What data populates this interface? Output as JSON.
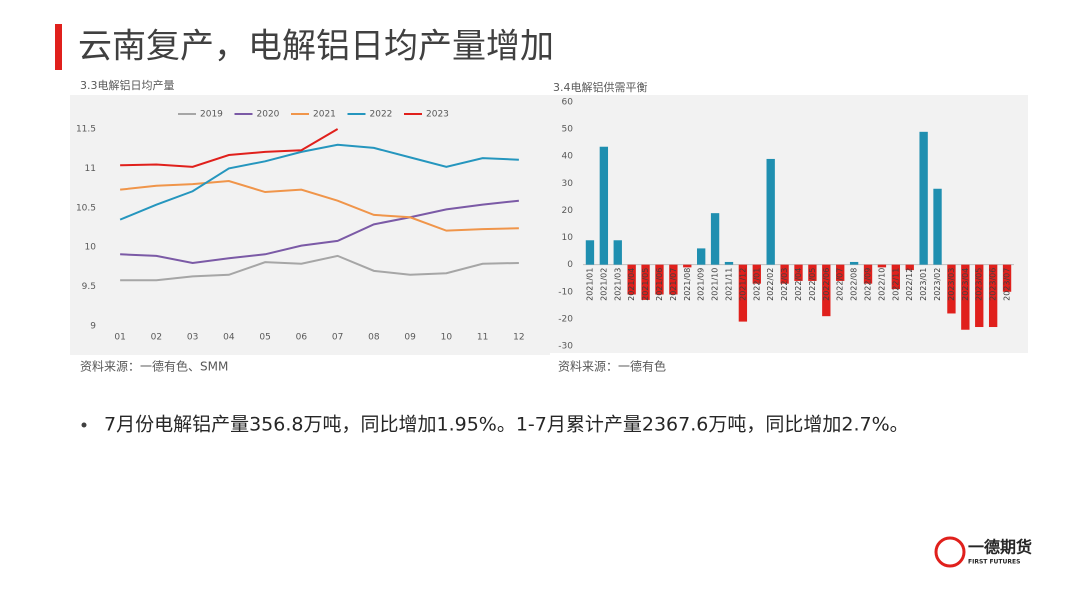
{
  "header": {
    "title": "云南复产，电解铝日均产量增加"
  },
  "chart_data": [
    {
      "type": "line",
      "title": "3.3电解铝日均产量",
      "source": "资料来源：一德有色、SMM",
      "categories": [
        "01",
        "02",
        "03",
        "04",
        "05",
        "06",
        "07",
        "08",
        "09",
        "10",
        "11",
        "12"
      ],
      "ylim": [
        9,
        11.5
      ],
      "yticks": [
        9,
        9.5,
        10,
        10.5,
        11,
        11.5
      ],
      "grid": false,
      "legend": "top",
      "series": [
        {
          "name": "2019",
          "color": "#a6a6a6",
          "values": [
            9.58,
            9.58,
            9.63,
            9.65,
            9.81,
            9.79,
            9.89,
            9.7,
            9.65,
            9.67,
            9.79,
            9.8
          ]
        },
        {
          "name": "2020",
          "color": "#7b5aa6",
          "values": [
            9.91,
            9.89,
            9.8,
            9.86,
            9.91,
            10.02,
            10.08,
            10.29,
            10.38,
            10.48,
            10.54,
            10.59
          ]
        },
        {
          "name": "2021",
          "color": "#f0954a",
          "values": [
            10.73,
            10.78,
            10.8,
            10.84,
            10.7,
            10.73,
            10.59,
            10.41,
            10.38,
            10.21,
            10.23,
            10.24
          ]
        },
        {
          "name": "2022",
          "color": "#2596be",
          "values": [
            10.35,
            10.54,
            10.71,
            11.0,
            11.09,
            11.21,
            11.3,
            11.26,
            11.14,
            11.02,
            11.13,
            11.11
          ]
        },
        {
          "name": "2023",
          "color": "#e0201c",
          "values": [
            11.04,
            11.05,
            11.02,
            11.17,
            11.21,
            11.23,
            11.5,
            null,
            null,
            null,
            null,
            null
          ]
        }
      ]
    },
    {
      "type": "bar",
      "title": "3.4电解铝供需平衡",
      "source": "资料来源：一德有色",
      "categories": [
        "2021/01",
        "2021/02",
        "2021/03",
        "2021/04",
        "2021/05",
        "2021/06",
        "2021/07",
        "2021/08",
        "2021/09",
        "2021/10",
        "2021/11",
        "2021/12",
        "2022/01",
        "2022/02",
        "2022/03",
        "2022/04",
        "2022/05",
        "2022/06",
        "2022/07",
        "2022/08",
        "2022/09",
        "2022/10",
        "2022/11",
        "2022/12",
        "2023/01",
        "2023/02",
        "2023/03",
        "2023/04",
        "2023/05",
        "2023/06",
        "2023/07"
      ],
      "values": [
        9,
        43.5,
        9,
        -11,
        -13,
        -11,
        -11,
        -1,
        6,
        19,
        1,
        -21,
        -7,
        39,
        -7,
        -6,
        -6,
        -19,
        -6,
        1,
        -7,
        -1,
        -9,
        -2,
        49,
        28,
        -18,
        -24,
        -23,
        -23,
        -10
      ],
      "color": "#1f8fb0",
      "negative_color": "#e0201c",
      "ylim": [
        -30,
        60
      ],
      "yticks": [
        -30,
        -20,
        -10,
        0,
        10,
        20,
        30,
        40,
        50,
        60
      ],
      "grid": false
    }
  ],
  "bullet": "7月份电解铝产量356.8万吨，同比增加1.95%。1-7月累计产量2367.6万吨，同比增加2.7%。",
  "logo": {
    "name": "一德期货",
    "english": "FIRST FUTURES"
  }
}
